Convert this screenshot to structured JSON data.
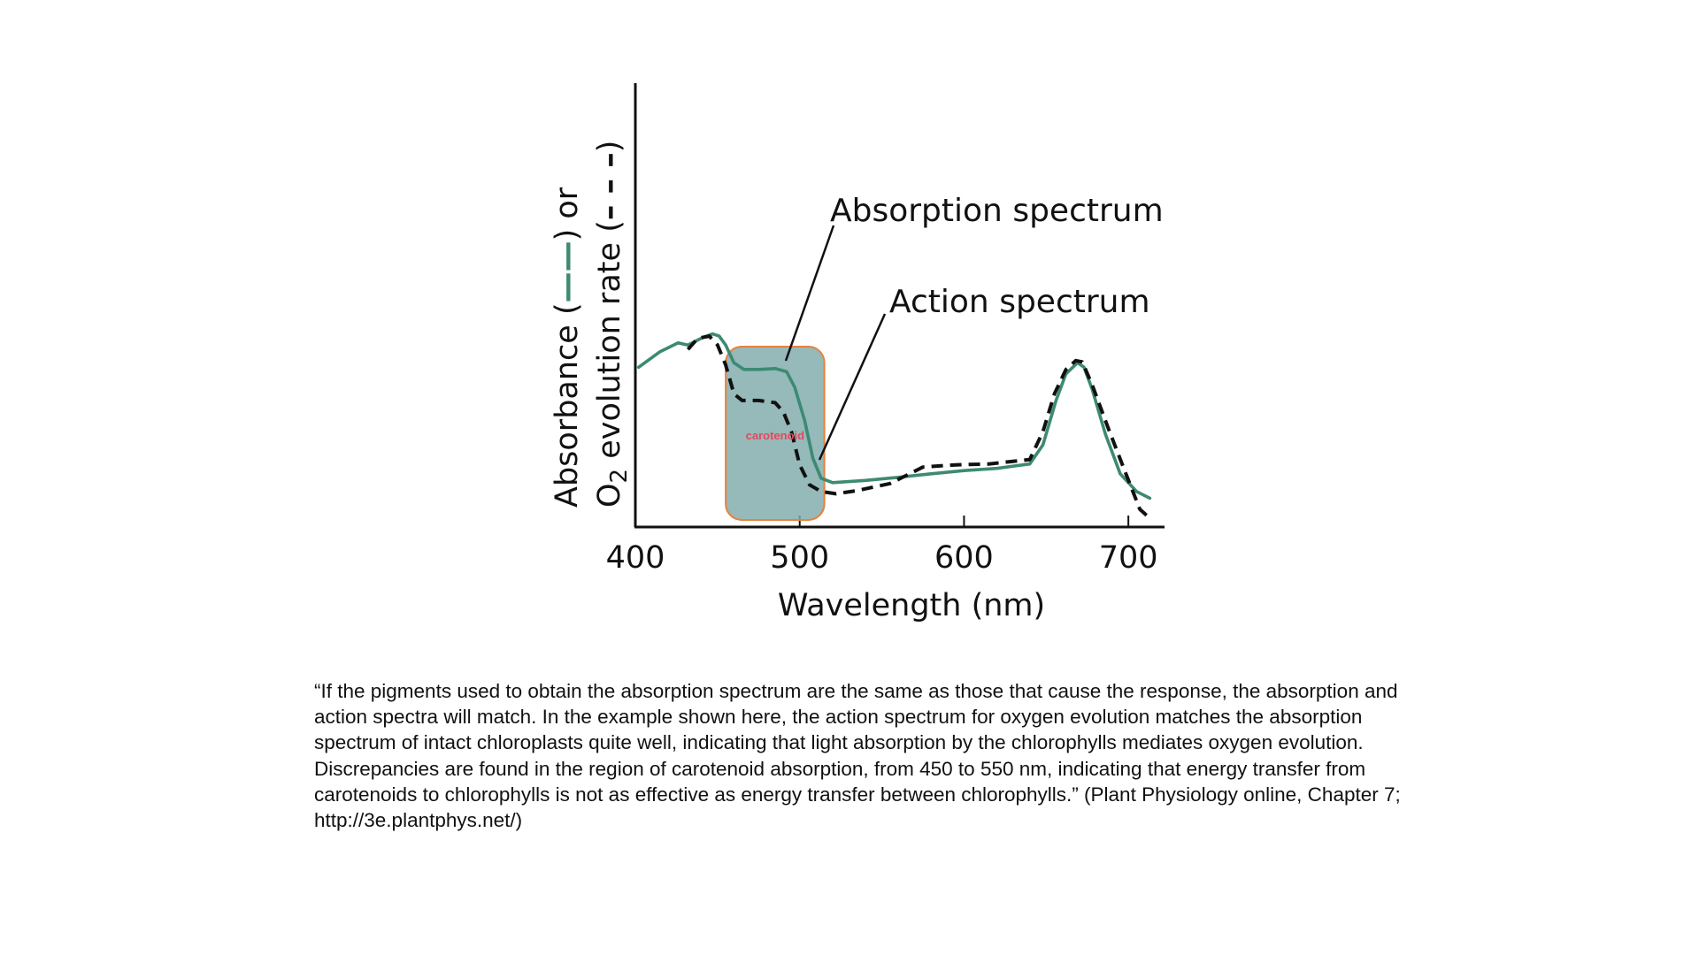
{
  "chart_data": {
    "type": "line",
    "xlabel": "Wavelength (nm)",
    "ylabel_line1": "Absorbance (",
    "ylabel_line1_end": ") or",
    "ylabel_line2_prefix": "O",
    "ylabel_line2_sub": "2",
    "ylabel_line2_rest": " evolution rate (",
    "ylabel_line2_end": ")",
    "xlim": [
      400,
      722
    ],
    "ylim": [
      0,
      1
    ],
    "xticks": [
      {
        "value": 400,
        "label": "400"
      },
      {
        "value": 500,
        "label": "500"
      },
      {
        "value": 600,
        "label": "600"
      },
      {
        "value": 700,
        "label": "700"
      }
    ],
    "grid": false,
    "series": [
      {
        "name": "Absorption spectrum",
        "style": "solid",
        "color": "#3d8a73",
        "x": [
          402,
          415,
          426,
          432,
          440,
          447,
          451,
          455,
          460,
          466,
          475,
          485,
          492,
          497,
          503,
          508,
          513,
          520,
          540,
          560,
          580,
          600,
          620,
          640,
          648,
          656,
          662,
          669,
          673,
          678,
          686,
          695,
          705,
          713
        ],
        "y": [
          0.36,
          0.395,
          0.415,
          0.41,
          0.425,
          0.435,
          0.43,
          0.41,
          0.37,
          0.355,
          0.355,
          0.357,
          0.35,
          0.315,
          0.24,
          0.155,
          0.11,
          0.1,
          0.105,
          0.112,
          0.12,
          0.127,
          0.132,
          0.142,
          0.185,
          0.285,
          0.345,
          0.37,
          0.36,
          0.31,
          0.21,
          0.12,
          0.08,
          0.065
        ]
      },
      {
        "name": "Action spectrum",
        "style": "dashed",
        "color": "#111111",
        "x": [
          432,
          438,
          445,
          450,
          455,
          460,
          465,
          475,
          485,
          490,
          495,
          500,
          506,
          513,
          522,
          535,
          555,
          575,
          595,
          615,
          640,
          648,
          655,
          662,
          668,
          672,
          678,
          688,
          698,
          707,
          713
        ],
        "y": [
          0.4,
          0.425,
          0.43,
          0.41,
          0.365,
          0.3,
          0.285,
          0.285,
          0.28,
          0.26,
          0.215,
          0.14,
          0.095,
          0.08,
          0.075,
          0.082,
          0.098,
          0.135,
          0.14,
          0.142,
          0.152,
          0.215,
          0.3,
          0.355,
          0.375,
          0.372,
          0.32,
          0.22,
          0.125,
          0.04,
          0.02
        ]
      }
    ],
    "annotations": [
      {
        "text": "Absorption spectrum",
        "points_to": "solid curve near 485 nm"
      },
      {
        "text": "Action spectrum",
        "points_to": "dashed curve near 515 nm"
      }
    ],
    "highlight": {
      "label": "carotenoid",
      "x_range": [
        455,
        515
      ],
      "fill": "#7fa9ab",
      "border": "#e8813a",
      "label_color": "#e8475c"
    }
  },
  "caption": "“If the pigments used to obtain the absorption spectrum are the same as those that cause the response, the absorption and action spectra will match. In the example shown here, the action spectrum for oxygen evolution matches the absorption spectrum of intact chloroplasts quite well, indicating that light absorption by the chlorophylls mediates oxygen evolution. Discrepancies are found in the region of carotenoid absorption, from 450 to 550 nm, indicating that energy transfer from carotenoids to chlorophylls is not as effective as energy transfer between chlorophylls.” (Plant Physiology online, Chapter 7; http://3e.plantphys.net/)"
}
